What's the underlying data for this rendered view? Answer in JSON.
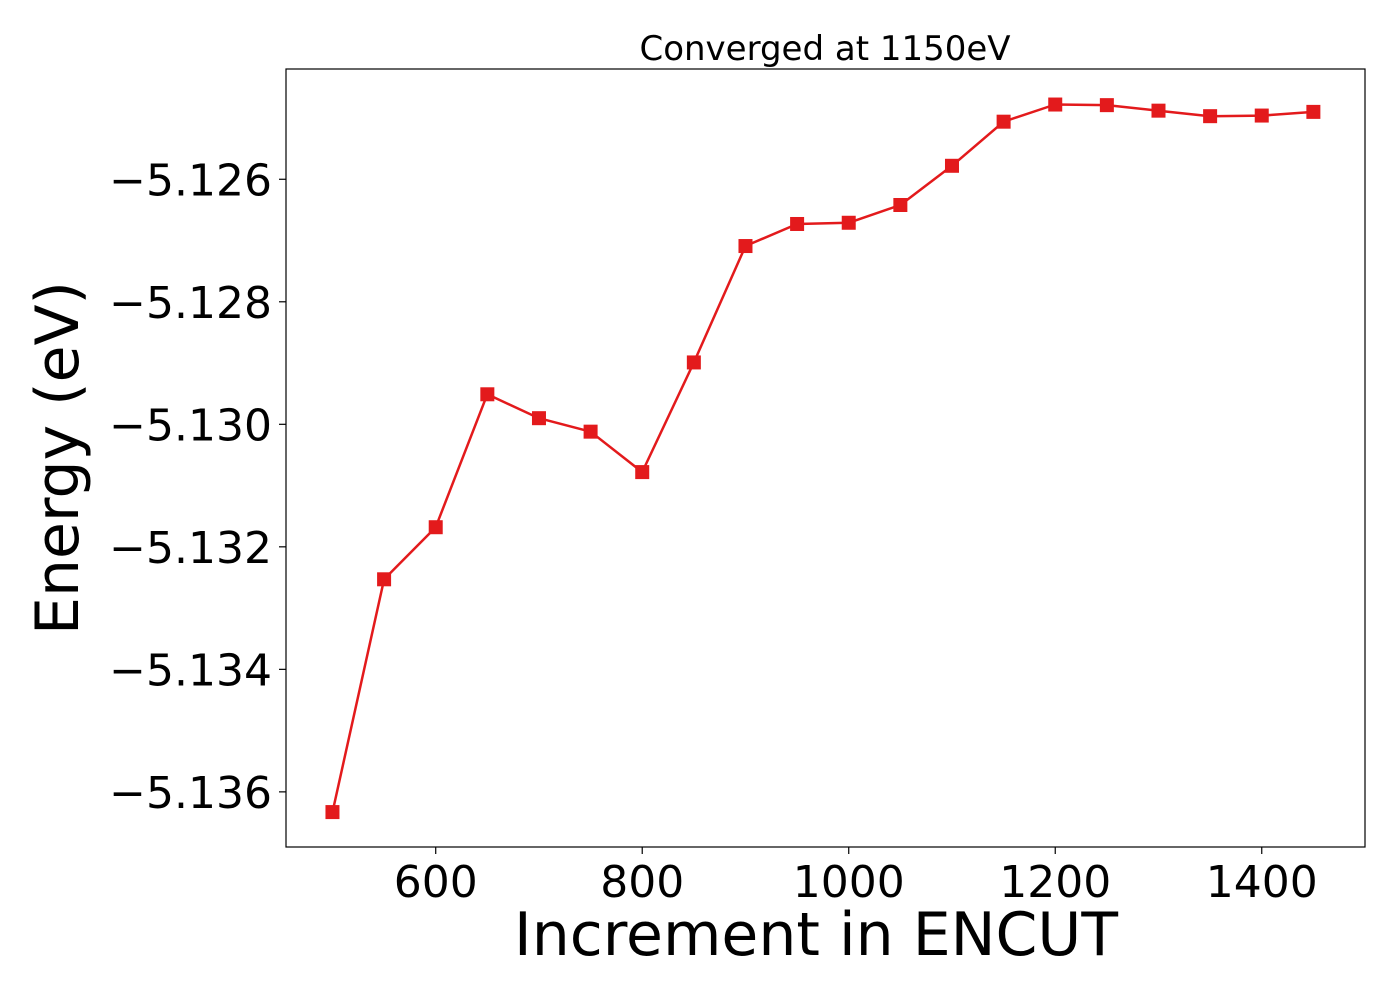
{
  "chart_data": {
    "type": "line",
    "title": "Converged at 1150eV",
    "xlabel": "Increment in ENCUT",
    "ylabel": "Energy (eV)",
    "xlim": [
      455,
      1500
    ],
    "ylim": [
      -5.1369,
      -5.1242
    ],
    "x_ticks": [
      600,
      800,
      1000,
      1200,
      1400
    ],
    "x_tick_labels": [
      "600",
      "800",
      "1000",
      "1200",
      "1400"
    ],
    "y_ticks": [
      -5.136,
      -5.134,
      -5.132,
      -5.13,
      -5.128,
      -5.126
    ],
    "y_tick_labels": [
      "−5.136",
      "−5.134",
      "−5.132",
      "−5.130",
      "−5.128",
      "−5.126"
    ],
    "grid": false,
    "series": [
      {
        "color": "#e31a1c",
        "marker": "square",
        "x": [
          500,
          550,
          600,
          650,
          700,
          750,
          800,
          850,
          900,
          950,
          1000,
          1050,
          1100,
          1150,
          1200,
          1250,
          1300,
          1350,
          1400,
          1450
        ],
        "y": [
          -5.13633,
          -5.13253,
          -5.13168,
          -5.12951,
          -5.1299,
          -5.13012,
          -5.13078,
          -5.12899,
          -5.12709,
          -5.12673,
          -5.12671,
          -5.12642,
          -5.12578,
          -5.12506,
          -5.12478,
          -5.12479,
          -5.12488,
          -5.12497,
          -5.12496,
          -5.1249
        ]
      }
    ]
  }
}
